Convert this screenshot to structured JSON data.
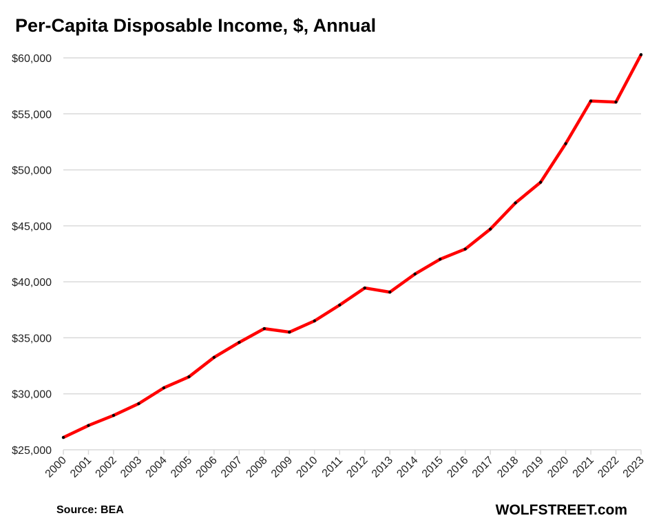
{
  "chart_data": {
    "type": "line",
    "title": "Per-Capita Disposable Income, $, Annual",
    "xlabel": "",
    "ylabel": "",
    "x": [
      "2000",
      "2001",
      "2002",
      "2003",
      "2004",
      "2005",
      "2006",
      "2007",
      "2008",
      "2009",
      "2010",
      "2011",
      "2012",
      "2013",
      "2014",
      "2015",
      "2016",
      "2017",
      "2018",
      "2019",
      "2020",
      "2021",
      "2022",
      "2023"
    ],
    "series": [
      {
        "values": [
          26100,
          27170,
          28070,
          29120,
          30530,
          31515,
          33255,
          34590,
          35820,
          35510,
          36510,
          37925,
          39450,
          39080,
          40695,
          42020,
          42925,
          44710,
          47045,
          48890,
          52340,
          56150,
          56050,
          60290
        ],
        "color": "#ff0000",
        "marker_color": "#000000"
      }
    ],
    "ylim": [
      25000,
      60000
    ],
    "yticks": [
      25000,
      30000,
      35000,
      40000,
      45000,
      50000,
      55000,
      60000
    ],
    "ytick_labels": [
      "$25,000",
      "$30,000",
      "$35,000",
      "$40,000",
      "$45,000",
      "$50,000",
      "$55,000",
      "$60,000"
    ],
    "grid": "horizontal",
    "gridline_color": "#d9d9d9",
    "legend": "none"
  },
  "footer": {
    "source": "Source: BEA",
    "brand": "WOLFSTREET.com"
  }
}
